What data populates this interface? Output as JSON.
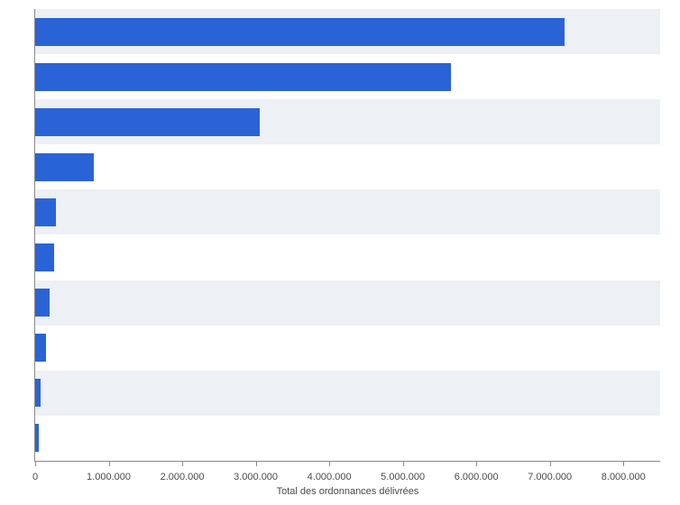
{
  "chart": {
    "type": "bar",
    "orientation": "horizontal",
    "background_color": "#ffffff",
    "band_alt_color": "#edf0f4",
    "bar_color": "#2a63d6",
    "axis_line_color": "#8a8a8a",
    "tick_label_color": "#4a4a4a",
    "tick_label_fontsize": 11,
    "axis_title_fontsize": 11,
    "x_axis_title": "Total des ordonnances délivrées",
    "xlim_max": 8500000,
    "xtick_step": 1000000,
    "xtick_labels": [
      "0",
      "1.000.000",
      "2.000.000",
      "3.000.000",
      "4.000.000",
      "5.000.000",
      "6.000.000",
      "7.000.000",
      "8.000.000"
    ],
    "n_bars": 10,
    "bar_fill_ratio": 0.62,
    "values": [
      7200000,
      5650000,
      3050000,
      800000,
      280000,
      260000,
      200000,
      150000,
      70000,
      55000
    ]
  }
}
